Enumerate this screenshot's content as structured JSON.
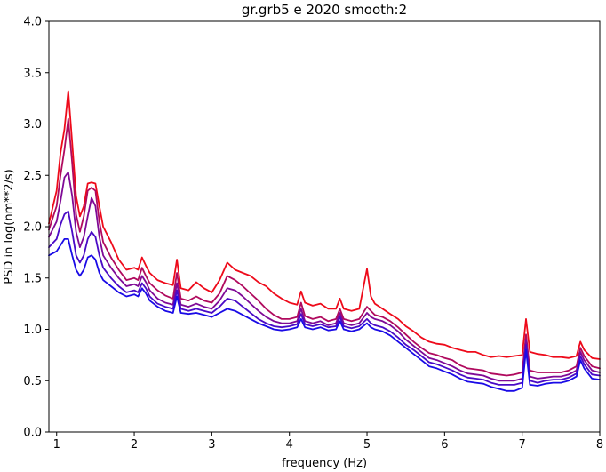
{
  "chart_data": {
    "type": "line",
    "title": "gr.grb5 e 2020 smooth:2",
    "xlabel": "frequency (Hz)",
    "ylabel": "PSD in log(nm**2/s)",
    "xlim": [
      0.9,
      8.0
    ],
    "ylim": [
      0.0,
      4.0
    ],
    "x_ticks": [
      "1",
      "2",
      "3",
      "4",
      "5",
      "6",
      "7",
      "8"
    ],
    "y_ticks": [
      "0.0",
      "0.5",
      "1.0",
      "1.5",
      "2.0",
      "2.5",
      "3.0",
      "3.5",
      "4.0"
    ],
    "grid": false,
    "legend": false,
    "x": [
      0.9,
      1.0,
      1.05,
      1.1,
      1.15,
      1.2,
      1.25,
      1.3,
      1.35,
      1.4,
      1.45,
      1.5,
      1.55,
      1.6,
      1.7,
      1.8,
      1.9,
      2.0,
      2.05,
      2.1,
      2.15,
      2.2,
      2.3,
      2.4,
      2.5,
      2.55,
      2.6,
      2.7,
      2.8,
      2.9,
      3.0,
      3.1,
      3.2,
      3.3,
      3.4,
      3.5,
      3.6,
      3.7,
      3.8,
      3.9,
      4.0,
      4.1,
      4.15,
      4.2,
      4.3,
      4.4,
      4.5,
      4.6,
      4.65,
      4.7,
      4.8,
      4.9,
      5.0,
      5.05,
      5.1,
      5.2,
      5.3,
      5.4,
      5.5,
      5.6,
      5.7,
      5.8,
      5.9,
      6.0,
      6.1,
      6.2,
      6.3,
      6.4,
      6.5,
      6.6,
      6.7,
      6.8,
      6.9,
      7.0,
      7.05,
      7.1,
      7.2,
      7.3,
      7.4,
      7.5,
      7.6,
      7.7,
      7.75,
      7.8,
      7.9,
      8.0
    ],
    "series": [
      {
        "color": "#ee0a1a",
        "values": [
          2.03,
          2.35,
          2.72,
          2.95,
          3.32,
          2.82,
          2.3,
          2.1,
          2.2,
          2.42,
          2.43,
          2.42,
          2.2,
          2.0,
          1.85,
          1.68,
          1.58,
          1.6,
          1.58,
          1.7,
          1.62,
          1.55,
          1.48,
          1.45,
          1.43,
          1.68,
          1.4,
          1.38,
          1.46,
          1.4,
          1.36,
          1.48,
          1.65,
          1.58,
          1.55,
          1.52,
          1.46,
          1.42,
          1.35,
          1.3,
          1.26,
          1.24,
          1.37,
          1.26,
          1.23,
          1.25,
          1.2,
          1.2,
          1.3,
          1.2,
          1.18,
          1.2,
          1.59,
          1.32,
          1.25,
          1.2,
          1.15,
          1.1,
          1.03,
          0.98,
          0.92,
          0.88,
          0.86,
          0.85,
          0.82,
          0.8,
          0.78,
          0.78,
          0.75,
          0.73,
          0.74,
          0.73,
          0.74,
          0.75,
          1.1,
          0.78,
          0.76,
          0.75,
          0.73,
          0.73,
          0.72,
          0.74,
          0.88,
          0.8,
          0.72,
          0.71
        ]
      },
      {
        "color": "#b00a5e",
        "values": [
          1.97,
          2.2,
          2.5,
          2.75,
          3.05,
          2.62,
          2.12,
          1.95,
          2.1,
          2.35,
          2.38,
          2.35,
          2.05,
          1.85,
          1.7,
          1.58,
          1.48,
          1.5,
          1.48,
          1.6,
          1.52,
          1.45,
          1.38,
          1.33,
          1.3,
          1.55,
          1.3,
          1.28,
          1.32,
          1.28,
          1.26,
          1.35,
          1.52,
          1.48,
          1.42,
          1.35,
          1.28,
          1.2,
          1.14,
          1.1,
          1.1,
          1.12,
          1.26,
          1.13,
          1.1,
          1.12,
          1.08,
          1.1,
          1.2,
          1.1,
          1.08,
          1.1,
          1.22,
          1.18,
          1.14,
          1.12,
          1.08,
          1.02,
          0.95,
          0.88,
          0.82,
          0.77,
          0.75,
          0.72,
          0.7,
          0.65,
          0.62,
          0.61,
          0.6,
          0.57,
          0.56,
          0.55,
          0.56,
          0.58,
          0.95,
          0.6,
          0.58,
          0.58,
          0.58,
          0.58,
          0.6,
          0.64,
          0.82,
          0.74,
          0.64,
          0.62
        ]
      },
      {
        "color": "#7f0a96",
        "values": [
          1.9,
          2.05,
          2.25,
          2.48,
          2.53,
          2.3,
          1.95,
          1.8,
          1.9,
          2.1,
          2.28,
          2.2,
          1.9,
          1.72,
          1.6,
          1.5,
          1.42,
          1.44,
          1.42,
          1.52,
          1.46,
          1.38,
          1.3,
          1.26,
          1.24,
          1.45,
          1.24,
          1.22,
          1.25,
          1.22,
          1.2,
          1.28,
          1.4,
          1.38,
          1.32,
          1.25,
          1.18,
          1.12,
          1.08,
          1.06,
          1.06,
          1.08,
          1.2,
          1.08,
          1.06,
          1.08,
          1.04,
          1.06,
          1.16,
          1.06,
          1.04,
          1.06,
          1.16,
          1.12,
          1.1,
          1.08,
          1.04,
          0.98,
          0.9,
          0.84,
          0.78,
          0.72,
          0.7,
          0.67,
          0.64,
          0.6,
          0.57,
          0.56,
          0.55,
          0.52,
          0.5,
          0.5,
          0.5,
          0.52,
          0.9,
          0.54,
          0.52,
          0.53,
          0.54,
          0.54,
          0.56,
          0.6,
          0.78,
          0.7,
          0.6,
          0.58
        ]
      },
      {
        "color": "#4a0ac6",
        "values": [
          1.8,
          1.88,
          2.02,
          2.12,
          2.15,
          1.95,
          1.72,
          1.65,
          1.72,
          1.88,
          1.95,
          1.9,
          1.72,
          1.6,
          1.5,
          1.42,
          1.36,
          1.38,
          1.36,
          1.45,
          1.4,
          1.32,
          1.25,
          1.22,
          1.2,
          1.38,
          1.2,
          1.18,
          1.2,
          1.18,
          1.16,
          1.22,
          1.3,
          1.28,
          1.22,
          1.16,
          1.1,
          1.06,
          1.03,
          1.02,
          1.03,
          1.05,
          1.15,
          1.05,
          1.03,
          1.05,
          1.02,
          1.03,
          1.12,
          1.03,
          1.01,
          1.03,
          1.1,
          1.06,
          1.04,
          1.02,
          0.98,
          0.92,
          0.85,
          0.8,
          0.74,
          0.68,
          0.66,
          0.63,
          0.6,
          0.56,
          0.53,
          0.52,
          0.51,
          0.48,
          0.46,
          0.46,
          0.46,
          0.48,
          0.85,
          0.5,
          0.48,
          0.5,
          0.51,
          0.51,
          0.53,
          0.57,
          0.74,
          0.66,
          0.56,
          0.55
        ]
      },
      {
        "color": "#1a0ae6",
        "values": [
          1.72,
          1.76,
          1.82,
          1.88,
          1.88,
          1.72,
          1.58,
          1.52,
          1.58,
          1.7,
          1.72,
          1.68,
          1.55,
          1.48,
          1.42,
          1.36,
          1.32,
          1.34,
          1.32,
          1.4,
          1.35,
          1.28,
          1.22,
          1.18,
          1.16,
          1.32,
          1.16,
          1.15,
          1.16,
          1.14,
          1.12,
          1.16,
          1.2,
          1.18,
          1.14,
          1.1,
          1.06,
          1.03,
          1.0,
          0.99,
          1.0,
          1.02,
          1.1,
          1.02,
          1.0,
          1.02,
          0.99,
          1.0,
          1.08,
          1.0,
          0.98,
          1.0,
          1.06,
          1.02,
          1.0,
          0.98,
          0.94,
          0.88,
          0.82,
          0.76,
          0.7,
          0.64,
          0.62,
          0.59,
          0.56,
          0.52,
          0.49,
          0.48,
          0.47,
          0.44,
          0.42,
          0.4,
          0.4,
          0.43,
          0.8,
          0.46,
          0.45,
          0.47,
          0.48,
          0.48,
          0.5,
          0.54,
          0.7,
          0.62,
          0.52,
          0.51
        ]
      }
    ]
  }
}
